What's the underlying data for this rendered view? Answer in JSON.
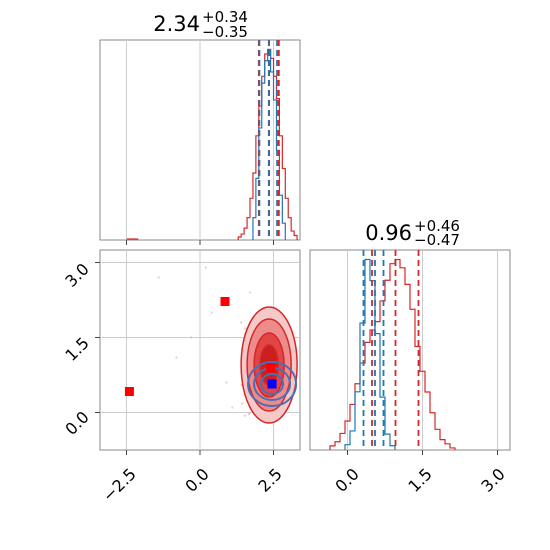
{
  "chart_data": {
    "type": "corner",
    "parameters": 2,
    "colors": {
      "red": "#d62728",
      "blue": "#1f77b4",
      "marker_red": "#ff0000",
      "marker_blue": "#0000ff"
    },
    "panel_top": {
      "type": "histogram",
      "title": {
        "value": "2.34",
        "plus": "+0.34",
        "minus": "−0.35"
      },
      "xlim": [
        -3.4,
        3.4
      ],
      "quantiles_red": [
        2.0,
        2.34,
        2.68
      ],
      "quantiles_blue": [
        2.02,
        2.35,
        2.62
      ],
      "hist_red": {
        "x": [
          1.35,
          1.45,
          1.55,
          1.65,
          1.75,
          1.85,
          1.95,
          2.05,
          2.15,
          2.25,
          2.35,
          2.45,
          2.55,
          2.65,
          2.75,
          2.85,
          2.95,
          3.05,
          3.15,
          3.25
        ],
        "y": [
          2,
          4,
          8,
          15,
          28,
          45,
          70,
          90,
          110,
          125,
          128,
          122,
          110,
          95,
          70,
          48,
          28,
          15,
          6,
          3
        ]
      },
      "hist_blue": {
        "x": [
          1.85,
          1.95,
          2.05,
          2.15,
          2.25,
          2.35,
          2.45,
          2.55,
          2.65,
          2.75,
          2.85
        ],
        "y": [
          20,
          55,
          100,
          140,
          160,
          170,
          150,
          125,
          80,
          40,
          15
        ]
      }
    },
    "panel_2d": {
      "type": "scatter-contour",
      "xlim": [
        -3.4,
        3.4
      ],
      "ylim": [
        -0.75,
        3.25
      ],
      "x_ticks": [
        "−2.5",
        "0.0",
        "2.5"
      ],
      "y_ticks": [
        "0.0",
        "1.5",
        "3.0"
      ],
      "markers": [
        {
          "color": "red",
          "x": -2.4,
          "y": 0.42
        },
        {
          "color": "red",
          "x": 0.85,
          "y": 2.22
        },
        {
          "color": "red",
          "x": 2.4,
          "y": 0.9
        },
        {
          "color": "blue",
          "x": 2.45,
          "y": 0.57
        }
      ]
    },
    "panel_right": {
      "type": "histogram",
      "title": {
        "value": "0.96",
        "plus": "+0.46",
        "minus": "−0.47"
      },
      "xlim": [
        -0.75,
        3.25
      ],
      "x_ticks": [
        "0.0",
        "1.5",
        "3.0"
      ],
      "quantiles_red": [
        0.49,
        0.96,
        1.42
      ],
      "quantiles_blue": [
        0.32,
        0.55,
        0.72
      ],
      "hist_red": {
        "x": [
          -0.3,
          -0.2,
          -0.1,
          0.0,
          0.1,
          0.2,
          0.3,
          0.4,
          0.5,
          0.6,
          0.7,
          0.8,
          0.9,
          1.0,
          1.1,
          1.2,
          1.3,
          1.4,
          1.5,
          1.6,
          1.7,
          1.8,
          1.9,
          2.0,
          2.1
        ],
        "y": [
          2,
          4,
          8,
          14,
          22,
          32,
          42,
          52,
          58,
          62,
          72,
          82,
          90,
          92,
          88,
          80,
          68,
          50,
          38,
          28,
          18,
          10,
          5,
          3,
          1
        ]
      },
      "hist_blue": {
        "x": [
          0.0,
          0.1,
          0.2,
          0.3,
          0.4,
          0.5,
          0.6,
          0.7,
          0.8,
          0.9
        ],
        "y": [
          5,
          18,
          55,
          120,
          180,
          160,
          110,
          50,
          15,
          4
        ]
      }
    }
  }
}
